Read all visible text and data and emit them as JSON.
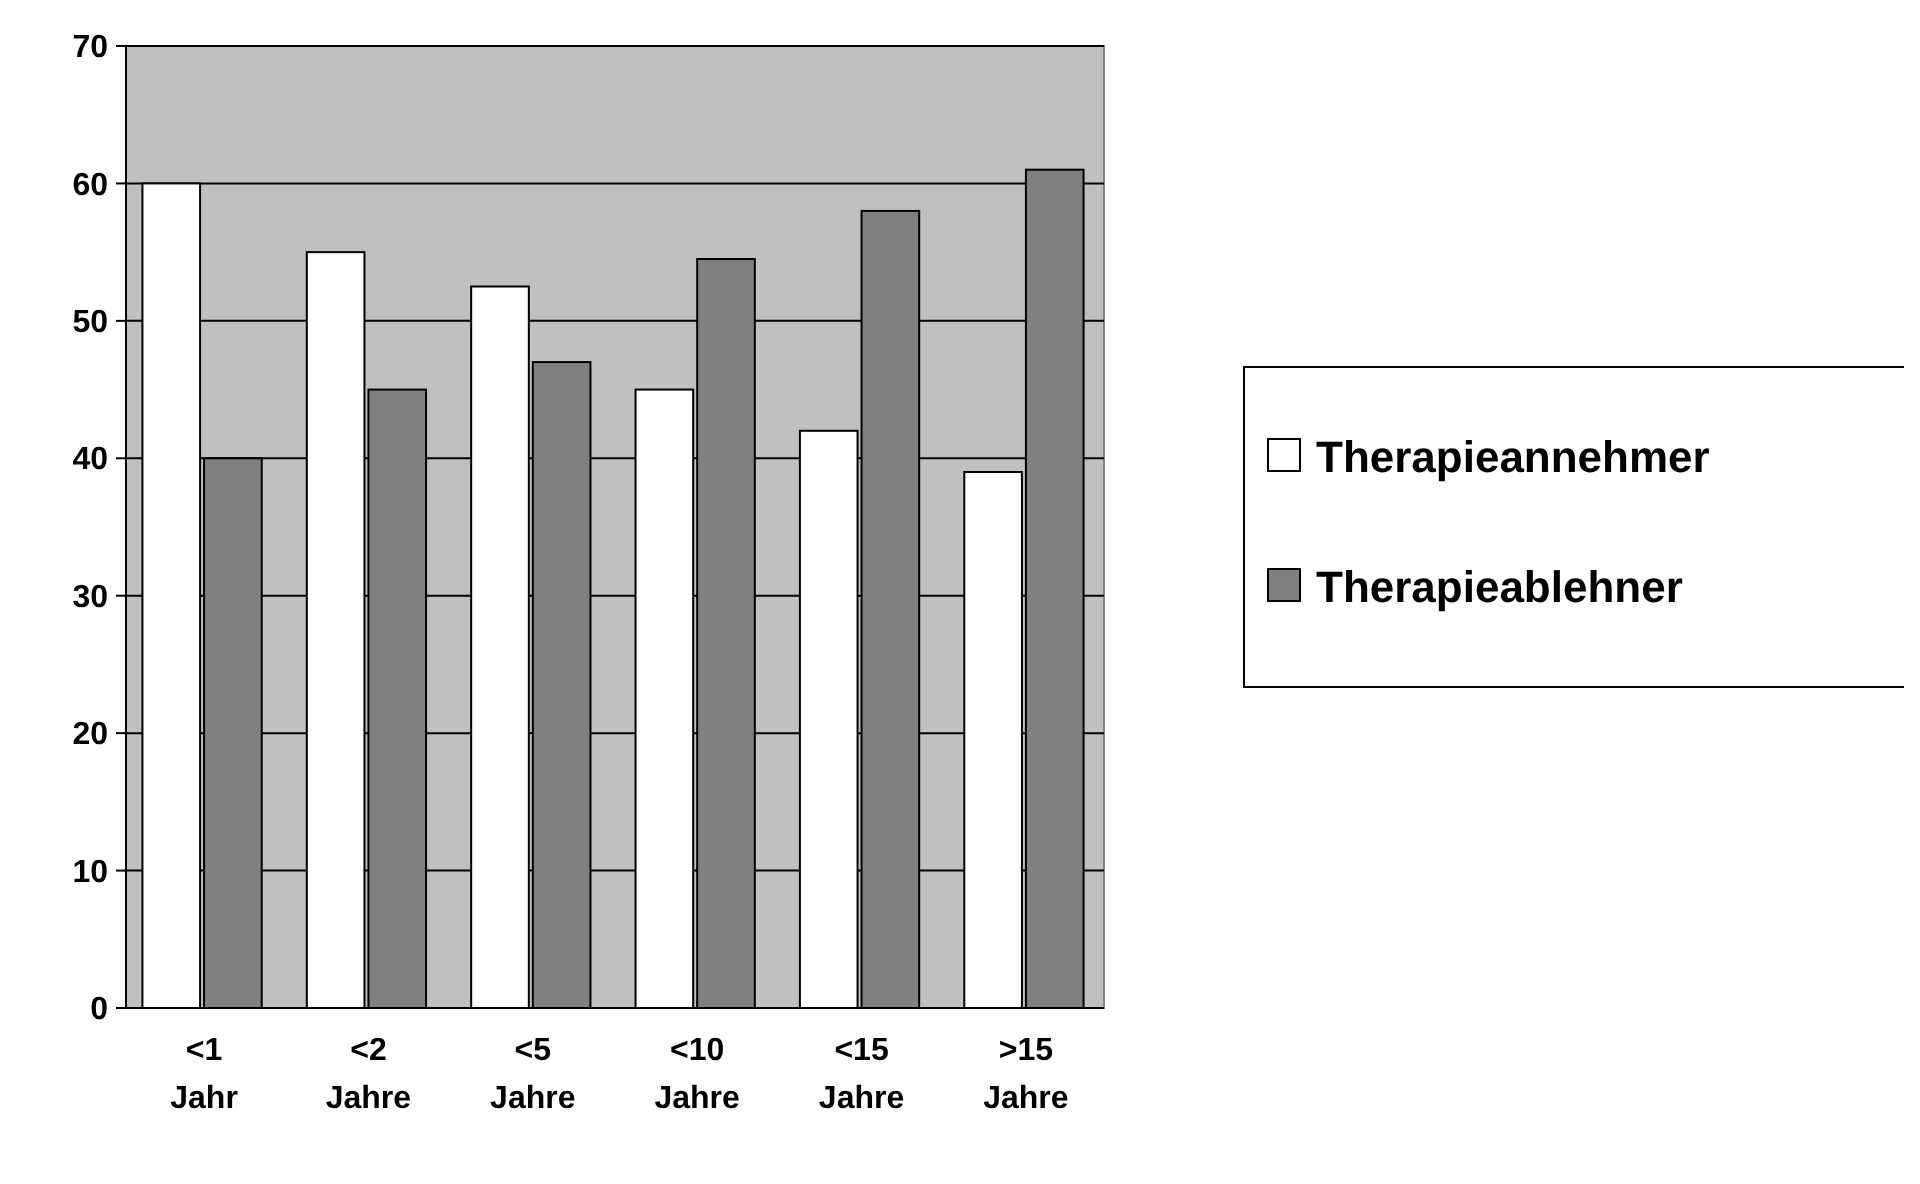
{
  "chart_data": {
    "type": "bar",
    "categories": [
      "<1 Jahr",
      "<2 Jahre",
      "<5 Jahre",
      "<10 Jahre",
      "<15 Jahre",
      ">15 Jahre"
    ],
    "series": [
      {
        "name": "Therapieannehmer",
        "color": "#ffffff",
        "values": [
          60,
          55,
          52.5,
          45,
          42,
          39
        ]
      },
      {
        "name": "Therapieablehner",
        "color": "#808080",
        "values": [
          40,
          45,
          47,
          54.5,
          58,
          61
        ]
      }
    ],
    "ylim": [
      0,
      70
    ],
    "yticks": [
      0,
      10,
      20,
      30,
      40,
      50,
      60,
      70
    ],
    "grid": "y",
    "legend": "right"
  }
}
